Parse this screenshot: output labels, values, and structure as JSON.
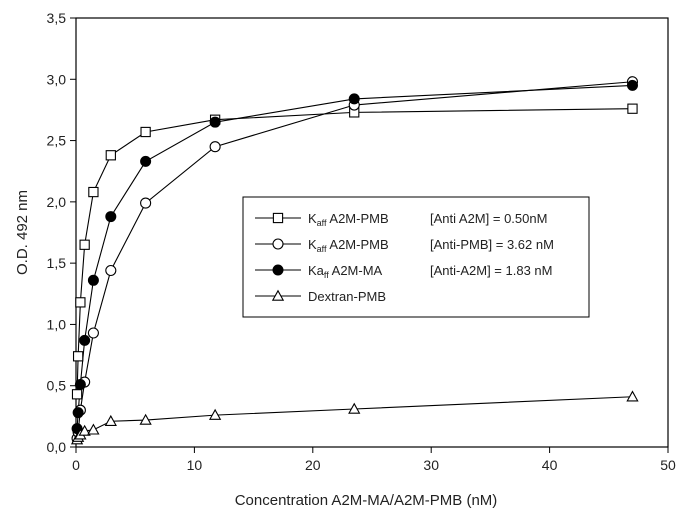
{
  "chart_data": {
    "type": "line",
    "title": "",
    "xlabel": "Concentration A2M-MA/A2M-PMB (nM)",
    "ylabel": "O.D. 492 nm",
    "xlim": [
      0,
      50
    ],
    "ylim": [
      0,
      3.5
    ],
    "xticks": [
      0,
      10,
      20,
      30,
      40,
      50
    ],
    "xtick_labels": [
      "0",
      "10",
      "20",
      "30",
      "40",
      "50"
    ],
    "yticks": [
      0,
      0.5,
      1.0,
      1.5,
      2.0,
      2.5,
      3.0,
      3.5
    ],
    "ytick_labels": [
      "0,0",
      "0,5",
      "1,0",
      "1,5",
      "2,0",
      "2,5",
      "3,0",
      "3,5"
    ],
    "grid": false,
    "legend_position": "center-right",
    "series": [
      {
        "name": "Kaff A2M-PMB [Anti A2M] = 0.50nM",
        "marker": "square-open",
        "x": [
          0.09,
          0.18,
          0.37,
          0.73,
          1.47,
          2.94,
          5.88,
          11.75,
          23.5,
          47
        ],
        "y": [
          0.43,
          0.74,
          1.18,
          1.65,
          2.08,
          2.38,
          2.57,
          2.67,
          2.73,
          2.76
        ]
      },
      {
        "name": "Kaff A2M-PMB [Anti-PMB] = 3.62 nM",
        "marker": "circle-open",
        "x": [
          0.09,
          0.18,
          0.37,
          0.73,
          1.47,
          2.94,
          5.88,
          11.75,
          23.5,
          47
        ],
        "y": [
          0.07,
          0.12,
          0.3,
          0.53,
          0.93,
          1.44,
          1.99,
          2.45,
          2.79,
          2.98
        ]
      },
      {
        "name": "Kaff A2M-MA [Anti-A2M] = 1.83 nM",
        "marker": "circle-filled",
        "x": [
          0.09,
          0.18,
          0.37,
          0.73,
          1.47,
          2.94,
          5.88,
          11.75,
          23.5,
          47
        ],
        "y": [
          0.15,
          0.28,
          0.51,
          0.87,
          1.36,
          1.88,
          2.33,
          2.65,
          2.84,
          2.95
        ]
      },
      {
        "name": "Dextran-PMB",
        "marker": "triangle-open",
        "x": [
          0.09,
          0.18,
          0.37,
          0.73,
          1.47,
          2.94,
          5.88,
          11.75,
          23.5,
          47
        ],
        "y": [
          0.06,
          0.08,
          0.1,
          0.13,
          0.14,
          0.21,
          0.22,
          0.26,
          0.31,
          0.41
        ]
      }
    ],
    "legend": [
      {
        "marker": "square-open",
        "k": "K",
        "sub": "aff",
        "rest": " A2M-PMB",
        "cond": "[Anti A2M] = 0.50nM"
      },
      {
        "marker": "circle-open",
        "k": "K",
        "sub": "aff",
        "rest": " A2M-PMB",
        "cond": "[Anti-PMB] = 3.62 nM"
      },
      {
        "marker": "circle-filled",
        "k": "Ka",
        "sub": "ff",
        "rest": " A2M-MA",
        "cond": "[Anti-A2M] = 1.83 nM"
      },
      {
        "marker": "triangle-open",
        "k": "Dextran-PMB",
        "sub": "",
        "rest": "",
        "cond": ""
      }
    ]
  }
}
